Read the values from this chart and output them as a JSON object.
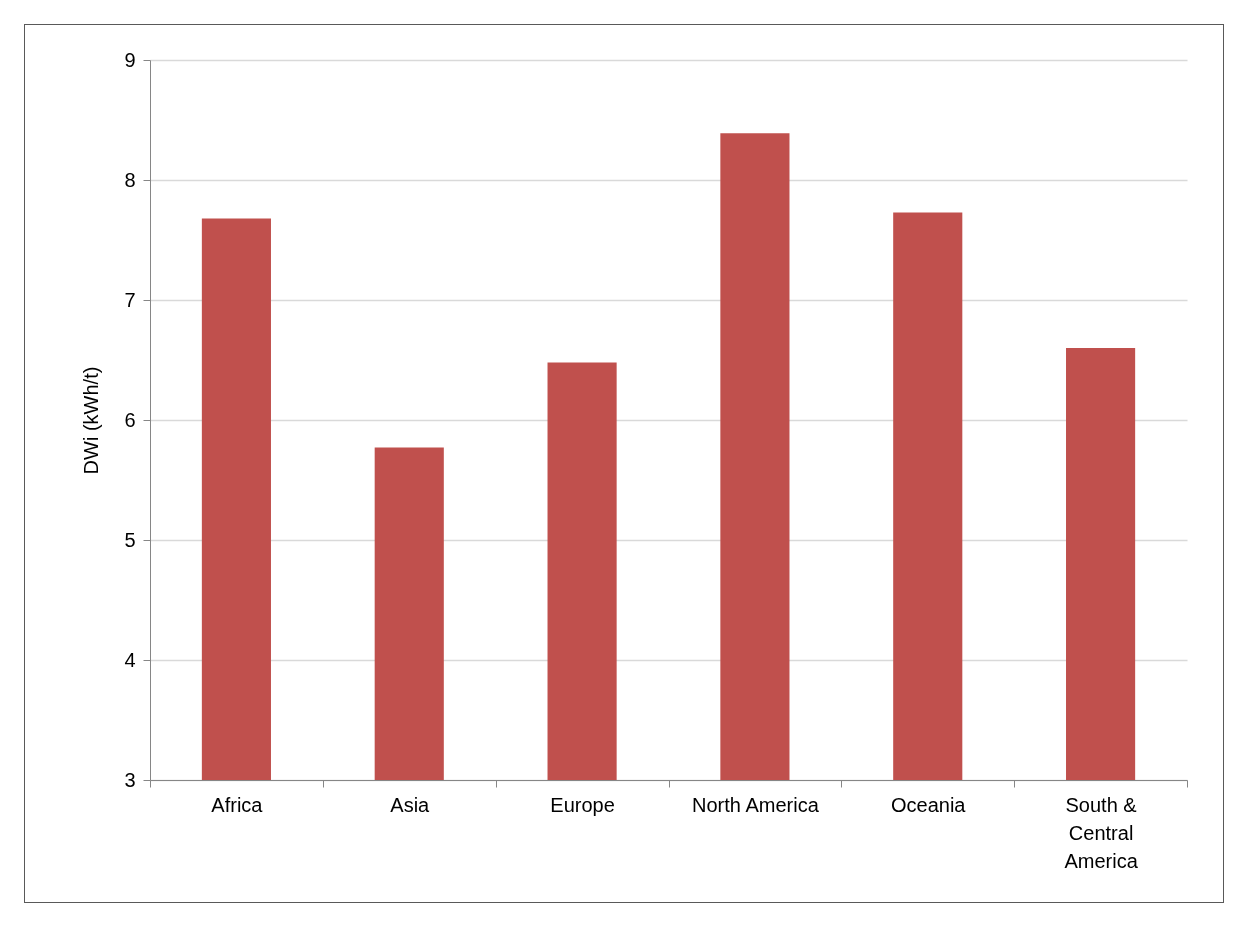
{
  "chart_data": {
    "type": "bar",
    "ylabel": "DWi (kWh/t)",
    "categories": [
      "Africa",
      "Asia",
      "Europe",
      "North America",
      "Oceania",
      "South & Central America"
    ],
    "values": [
      7.68,
      5.77,
      6.48,
      8.39,
      7.73,
      6.6
    ],
    "color": "#c0504d",
    "ylim": [
      3,
      9
    ],
    "yticks": [
      3,
      4,
      5,
      6,
      7,
      8,
      9
    ],
    "grid": "y"
  }
}
